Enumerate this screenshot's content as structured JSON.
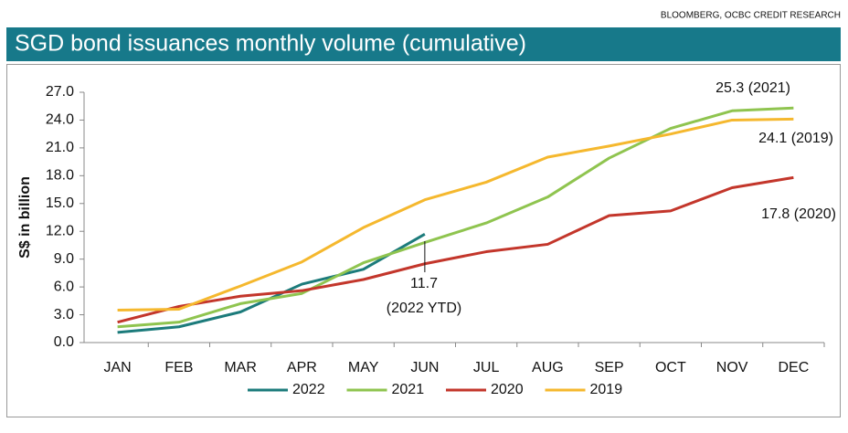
{
  "chart_data": {
    "type": "line",
    "source": "BLOOMBERG, OCBC CREDIT RESEARCH",
    "title": "SGD bond issuances monthly volume (cumulative)",
    "y_label": "S$ in billion",
    "categories": [
      "JAN",
      "FEB",
      "MAR",
      "APR",
      "MAY",
      "JUN",
      "JUL",
      "AUG",
      "SEP",
      "OCT",
      "NOV",
      "DEC"
    ],
    "series": [
      {
        "name": "2022",
        "color": "#1c7b7b",
        "values": [
          1.1,
          1.7,
          3.3,
          6.3,
          7.9,
          11.7,
          null,
          null,
          null,
          null,
          null,
          null
        ]
      },
      {
        "name": "2021",
        "color": "#8fc44f",
        "values": [
          1.7,
          2.2,
          4.2,
          5.3,
          8.6,
          10.8,
          12.9,
          15.7,
          19.9,
          23.1,
          25.0,
          25.3
        ]
      },
      {
        "name": "2020",
        "color": "#c3362b",
        "values": [
          2.2,
          3.9,
          5.0,
          5.6,
          6.8,
          8.5,
          9.8,
          10.6,
          13.7,
          14.2,
          16.7,
          17.8
        ]
      },
      {
        "name": "2019",
        "color": "#f5b82e",
        "values": [
          3.5,
          3.6,
          6.1,
          8.7,
          12.4,
          15.4,
          17.3,
          20.0,
          21.2,
          22.5,
          24.0,
          24.1
        ]
      }
    ],
    "ylim": [
      0,
      27
    ],
    "yticks": [
      {
        "value": 0,
        "label": "0.0"
      },
      {
        "value": 3,
        "label": "3.0"
      },
      {
        "value": 6,
        "label": "6.0"
      },
      {
        "value": 9,
        "label": "9.0"
      },
      {
        "value": 12,
        "label": "12.0"
      },
      {
        "value": 15,
        "label": "15.0"
      },
      {
        "value": 18,
        "label": "18.0"
      },
      {
        "value": 21,
        "label": "21.0"
      },
      {
        "value": 24,
        "label": "24.0"
      },
      {
        "value": 27,
        "label": "27.0"
      }
    ],
    "grid": false,
    "legend": "bottom",
    "annotations": [
      "25.3 (2021)",
      "24.1 (2019)",
      "17.8 (2020)",
      "11.7",
      "(2022 YTD)"
    ]
  }
}
